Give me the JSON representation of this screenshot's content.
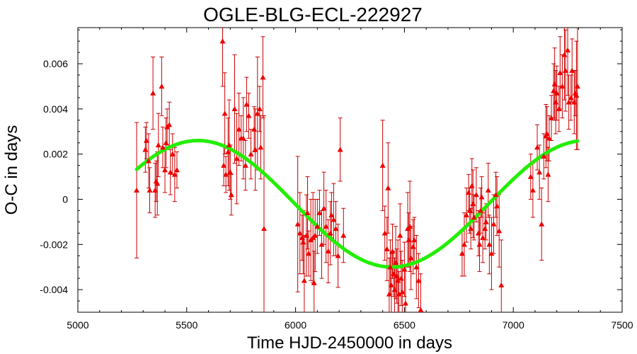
{
  "chart_data": {
    "type": "scatter",
    "title": "OGLE-BLG-ECL-222927",
    "xlabel": "Time HJD-2450000 in days",
    "ylabel": "O-C in days",
    "xlim": [
      5000,
      7500
    ],
    "ylim": [
      -0.005,
      0.0076
    ],
    "xticks": [
      5000,
      5500,
      6000,
      6500,
      7000,
      7500
    ],
    "xtick_labels": [
      "5000",
      "5500",
      "6000",
      "6500",
      "7000",
      "7500"
    ],
    "yticks": [
      -0.004,
      -0.002,
      0,
      0.002,
      0.004,
      0.006
    ],
    "ytick_labels": [
      "-0.004",
      "-0.002",
      "0",
      "0.002",
      "0.004",
      "0.006"
    ],
    "grid": false,
    "legend": "none",
    "colors": {
      "points": "#ee0000",
      "errorbars": "#cc0000",
      "fit": "#22ee00"
    },
    "series": [
      {
        "kind": "points_with_errorbars",
        "points": [
          [
            5270,
            0.0004,
            0.003
          ],
          [
            5310,
            0.0022,
            0.001
          ],
          [
            5315,
            0.0026,
            0.0008
          ],
          [
            5325,
            0.0017,
            0.0012
          ],
          [
            5330,
            0.0004,
            0.001
          ],
          [
            5345,
            0.0047,
            0.0016
          ],
          [
            5355,
            0.0004,
            0.0012
          ],
          [
            5360,
            0.0008,
            0.0009
          ],
          [
            5365,
            0.0007,
            0.0014
          ],
          [
            5370,
            0.0024,
            0.0014
          ],
          [
            5385,
            0.005,
            0.0013
          ],
          [
            5390,
            0.0023,
            0.0009
          ],
          [
            5400,
            0.0013,
            0.001
          ],
          [
            5405,
            0.0025,
            0.0011
          ],
          [
            5410,
            0.0032,
            0.0008
          ],
          [
            5420,
            0.0033,
            0.001
          ],
          [
            5425,
            0.0012,
            0.001
          ],
          [
            5435,
            0.002,
            0.0009
          ],
          [
            5445,
            0.0011,
            0.0012
          ],
          [
            5455,
            0.0013,
            0.0008
          ],
          [
            5665,
            0.007,
            0.002
          ],
          [
            5670,
            0.0015,
            0.0009
          ],
          [
            5675,
            0.0038,
            0.0018
          ],
          [
            5680,
            0.0011,
            0.0008
          ],
          [
            5690,
            0.0021,
            0.0015
          ],
          [
            5695,
            0.0024,
            0.002
          ],
          [
            5700,
            0.0012,
            0.0012
          ],
          [
            5705,
            0.0002,
            0.0009
          ],
          [
            5720,
            0.004,
            0.0024
          ],
          [
            5730,
            0.0018,
            0.002
          ],
          [
            5740,
            0.0031,
            0.0016
          ],
          [
            5750,
            0.0027,
            0.001
          ],
          [
            5760,
            0.0027,
            0.0018
          ],
          [
            5770,
            0.0015,
            0.0011
          ],
          [
            5775,
            0.0042,
            0.0012
          ],
          [
            5785,
            0.0037,
            0.001
          ],
          [
            5795,
            0.002,
            0.0011
          ],
          [
            5810,
            0.0031,
            0.001
          ],
          [
            5815,
            0.0022,
            0.0018
          ],
          [
            5825,
            0.0038,
            0.0025
          ],
          [
            5835,
            0.004,
            0.001
          ],
          [
            5840,
            0.0023,
            0.0014
          ],
          [
            5850,
            0.0054,
            0.0018
          ],
          [
            5855,
            -0.0013,
            0.005
          ],
          [
            6010,
            -0.0011,
            0.003
          ],
          [
            6020,
            -0.0015,
            0.0018
          ],
          [
            6030,
            -0.0017,
            0.001
          ],
          [
            6035,
            -0.0019,
            0.0014
          ],
          [
            6040,
            -0.0036,
            0.002
          ],
          [
            6050,
            -0.0016,
            0.0018
          ],
          [
            6055,
            -0.0006,
            0.0016
          ],
          [
            6060,
            -0.0024,
            0.001
          ],
          [
            6070,
            -0.0018,
            0.0018
          ],
          [
            6080,
            -0.0017,
            0.002
          ],
          [
            6085,
            -0.0037,
            0.0014
          ],
          [
            6090,
            -0.0016,
            0.0016
          ],
          [
            6100,
            -0.0012,
            0.0012
          ],
          [
            6110,
            -0.0006,
            0.001
          ],
          [
            6120,
            -0.002,
            0.0015
          ],
          [
            6130,
            -0.0004,
            0.0016
          ],
          [
            6140,
            -0.0012,
            0.0016
          ],
          [
            6150,
            -0.0023,
            0.0014
          ],
          [
            6160,
            -0.0015,
            0.0014
          ],
          [
            6165,
            -0.0007,
            0.001
          ],
          [
            6175,
            -0.0009,
            0.0016
          ],
          [
            6185,
            -0.0013,
            0.0012
          ],
          [
            6195,
            -0.0025,
            0.0014
          ],
          [
            6205,
            0.0022,
            0.0014
          ],
          [
            6220,
            -0.0016,
            0.0012
          ],
          [
            6400,
            0.0015,
            0.002
          ],
          [
            6410,
            -0.0015,
            0.0012
          ],
          [
            6420,
            -0.0022,
            0.0014
          ],
          [
            6425,
            0.0005,
            0.002
          ],
          [
            6430,
            -0.0042,
            0.0016
          ],
          [
            6435,
            -0.003,
            0.0012
          ],
          [
            6440,
            -0.0038,
            0.0014
          ],
          [
            6445,
            -0.0023,
            0.0012
          ],
          [
            6450,
            -0.0033,
            0.001
          ],
          [
            6455,
            -0.004,
            0.0014
          ],
          [
            6460,
            -0.0028,
            0.0016
          ],
          [
            6465,
            -0.0034,
            0.0012
          ],
          [
            6470,
            -0.0036,
            0.0018
          ],
          [
            6475,
            -0.0042,
            0.001
          ],
          [
            6480,
            -0.0016,
            0.0014
          ],
          [
            6485,
            -0.0035,
            0.0012
          ],
          [
            6490,
            -0.0041,
            0.0014
          ],
          [
            6500,
            -0.0031,
            0.0012
          ],
          [
            6505,
            -0.0046,
            0.0016
          ],
          [
            6515,
            -0.0013,
            0.0016
          ],
          [
            6520,
            -0.0018,
            0.0012
          ],
          [
            6525,
            -0.0012,
            0.002
          ],
          [
            6530,
            -0.0026,
            0.0014
          ],
          [
            6540,
            -0.0021,
            0.0012
          ],
          [
            6545,
            -0.0018,
            0.001
          ],
          [
            6555,
            -0.003,
            0.0014
          ],
          [
            6565,
            -0.0036,
            0.0012
          ],
          [
            6575,
            -0.0049,
            0.0016
          ],
          [
            6765,
            -0.0024,
            0.001
          ],
          [
            6775,
            -0.002,
            0.0014
          ],
          [
            6785,
            -0.0007,
            0.0012
          ],
          [
            6795,
            0.0003,
            0.0008
          ],
          [
            6800,
            -0.0005,
            0.001
          ],
          [
            6805,
            -0.0013,
            0.0009
          ],
          [
            6810,
            0.0006,
            0.0012
          ],
          [
            6815,
            -0.0002,
            0.0015
          ],
          [
            6820,
            -0.0008,
            0.001
          ],
          [
            6830,
            0.0002,
            0.0012
          ],
          [
            6840,
            -0.0015,
            0.001
          ],
          [
            6845,
            -0.002,
            0.0012
          ],
          [
            6850,
            -0.0005,
            0.001
          ],
          [
            6855,
            0.0001,
            0.0009
          ],
          [
            6860,
            -0.0017,
            0.0011
          ],
          [
            6870,
            -0.0013,
            0.0009
          ],
          [
            6875,
            -0.001,
            0.0008
          ],
          [
            6885,
            0.0004,
            0.0012
          ],
          [
            6890,
            -0.002,
            0.0013
          ],
          [
            6900,
            -0.0024,
            0.0016
          ],
          [
            6910,
            -0.0011,
            0.0013
          ],
          [
            6920,
            0.0002,
            0.001
          ],
          [
            6925,
            -0.0003,
            0.0013
          ],
          [
            6935,
            -0.0014,
            0.0016
          ],
          [
            6945,
            -0.0038,
            0.002
          ],
          [
            7080,
            0.001,
            0.001
          ],
          [
            7090,
            0.0004,
            0.0012
          ],
          [
            7110,
            0.0023,
            0.001
          ],
          [
            7120,
            0.0012,
            0.0012
          ],
          [
            7130,
            -0.0011,
            0.0016
          ],
          [
            7140,
            0.0019,
            0.001
          ],
          [
            7150,
            0.0028,
            0.0014
          ],
          [
            7155,
            0.0029,
            0.0012
          ],
          [
            7160,
            0.0011,
            0.0012
          ],
          [
            7165,
            0.0027,
            0.001
          ],
          [
            7175,
            0.0036,
            0.001
          ],
          [
            7185,
            0.0048,
            0.0012
          ],
          [
            7190,
            0.0051,
            0.0016
          ],
          [
            7195,
            0.0043,
            0.0014
          ],
          [
            7200,
            0.0047,
            0.0012
          ],
          [
            7210,
            0.004,
            0.001
          ],
          [
            7215,
            0.0056,
            0.0016
          ],
          [
            7225,
            0.005,
            0.0014
          ],
          [
            7235,
            0.0064,
            0.002
          ],
          [
            7240,
            0.0057,
            0.0018
          ],
          [
            7250,
            0.0066,
            0.002
          ],
          [
            7255,
            0.0043,
            0.0012
          ],
          [
            7265,
            0.0045,
            0.001
          ],
          [
            7270,
            0.0057,
            0.0014
          ],
          [
            7280,
            0.0043,
            0.0014
          ],
          [
            7285,
            0.0047,
            0.001
          ],
          [
            7290,
            0.0046,
            0.0024
          ],
          [
            7295,
            0.005,
            0.0028
          ]
        ]
      },
      {
        "kind": "fit_curve",
        "x_range": [
          5270,
          7295
        ],
        "model": "light-time sinusoid",
        "offset": -0.0002,
        "amplitude": 0.0028,
        "period": 1780,
        "phase_peak_x": 5552
      }
    ]
  }
}
